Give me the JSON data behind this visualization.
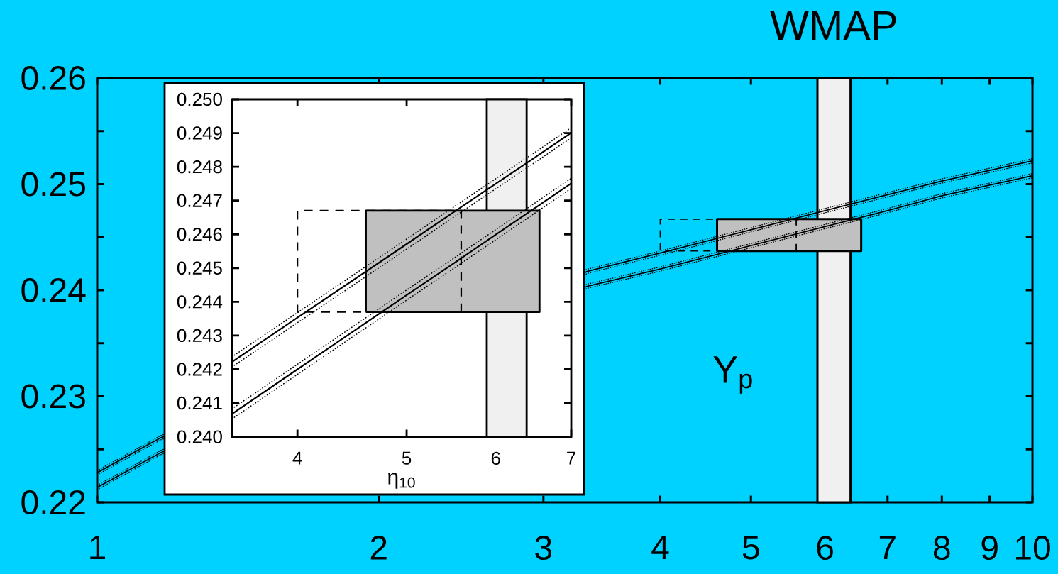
{
  "chart_data": [
    {
      "type": "line",
      "x": [
        1,
        1.17,
        3.35,
        4,
        5,
        6,
        7,
        8,
        9,
        10
      ],
      "series": [
        {
          "color": "#000000",
          "line_style": "dotted",
          "values": [
            0.223,
            0.2263,
            0.242,
            0.2437,
            0.2459,
            0.2477,
            0.2492,
            0.2505,
            0.2515,
            0.2524
          ]
        },
        {
          "color": "#000000",
          "line_style": "solid",
          "values": [
            0.2228,
            0.2261,
            0.2418,
            0.2435,
            0.2457,
            0.2475,
            0.249,
            0.2503,
            0.2513,
            0.2522
          ]
        },
        {
          "color": "#000000",
          "line_style": "dotted",
          "values": [
            0.2226,
            0.2259,
            0.2416,
            0.2433,
            0.2455,
            0.2473,
            0.2488,
            0.2501,
            0.2511,
            0.252
          ]
        },
        {
          "color": "#000000",
          "line_style": "dotted",
          "values": [
            0.2216,
            0.2249,
            0.2406,
            0.2422,
            0.2444,
            0.2462,
            0.2477,
            0.2491,
            0.2501,
            0.251
          ]
        },
        {
          "color": "#000000",
          "line_style": "solid",
          "values": [
            0.2214,
            0.2247,
            0.2404,
            0.242,
            0.2442,
            0.246,
            0.2475,
            0.2489,
            0.2499,
            0.2508
          ]
        },
        {
          "color": "#000000",
          "line_style": "dotted",
          "values": [
            0.2212,
            0.2245,
            0.2402,
            0.2418,
            0.244,
            0.2458,
            0.2473,
            0.2487,
            0.2497,
            0.2506
          ]
        },
        {
          "type": "area",
          "color": "#c0c0c0",
          "x": [
            4.6,
            4.6,
            6.56,
            6.56,
            4.6
          ],
          "values": [
            0.2437,
            0.2467,
            0.2467,
            0.2437,
            0.2437
          ]
        },
        {
          "type": "line",
          "color": "#000000",
          "line_style": "dashed",
          "x": [
            5.59,
            5.59,
            4,
            4,
            4.6
          ],
          "values": [
            0.2437,
            0.2467,
            0.2467,
            0.2437,
            0.2437
          ]
        }
      ],
      "xlim": [
        1,
        10
      ],
      "ylim": [
        0.22,
        0.26
      ],
      "log": "x",
      "xticks": [
        1,
        2,
        3,
        4,
        5,
        6,
        7,
        8,
        9,
        10
      ],
      "yticks": [
        0.22,
        {
          "value": 0.225,
          "label": null
        },
        0.23,
        {
          "value": 0.235,
          "label": null
        },
        0.24,
        {
          "value": 0.245,
          "label": null
        },
        0.25,
        {
          "value": 0.255,
          "label": null
        },
        0.26
      ],
      "bands": [
        {
          "axis": "x",
          "from": 5.89,
          "to": 6.39,
          "label": "WMAP",
          "color": "#f0f0f0"
        }
      ],
      "annotations": [
        "Y$_{p}$"
      ]
    },
    {
      "type": "line",
      "x": [
        3.5,
        4,
        4.5,
        5,
        5.5,
        6,
        6.5,
        7
      ],
      "series": [
        {
          "color": "#000000",
          "line_style": "dotted",
          "values": [
            0.24237,
            0.24368,
            0.24483,
            0.24586,
            0.2468,
            0.24765,
            0.24843,
            0.24916
          ]
        },
        {
          "color": "#000000",
          "line_style": "solid",
          "values": [
            0.24222,
            0.24353,
            0.24468,
            0.24571,
            0.24665,
            0.2475,
            0.24828,
            0.24901
          ]
        },
        {
          "color": "#000000",
          "line_style": "dotted",
          "values": [
            0.24207,
            0.24338,
            0.24453,
            0.24556,
            0.2465,
            0.24735,
            0.24813,
            0.24886
          ]
        },
        {
          "color": "#000000",
          "line_style": "dotted",
          "values": [
            0.24083,
            0.24215,
            0.24331,
            0.24435,
            0.24528,
            0.24614,
            0.24693,
            0.24766
          ]
        },
        {
          "color": "#000000",
          "line_style": "solid",
          "values": [
            0.24068,
            0.242,
            0.24316,
            0.2442,
            0.24513,
            0.24599,
            0.24678,
            0.24751
          ]
        },
        {
          "color": "#000000",
          "line_style": "dotted",
          "values": [
            0.24053,
            0.24185,
            0.24301,
            0.24405,
            0.24498,
            0.24584,
            0.24663,
            0.24736
          ]
        },
        {
          "type": "area",
          "color": "#c0c0c0",
          "x": [
            4.6,
            4.6,
            6.56,
            6.56,
            4.6
          ],
          "values": [
            0.2437,
            0.2467,
            0.2467,
            0.2437,
            0.2437
          ]
        },
        {
          "type": "line",
          "color": "#000000",
          "line_style": "dashed",
          "x": [
            5.59,
            5.59,
            4,
            4,
            4.6
          ],
          "values": [
            0.2437,
            0.2467,
            0.2467,
            0.2437,
            0.2437
          ]
        }
      ],
      "xlim": [
        3.5,
        7
      ],
      "ylim": [
        0.24,
        0.25
      ],
      "log": "x",
      "xticks": [
        4,
        5,
        6,
        7
      ],
      "yticks": [
        {
          "value": 0.24,
          "label": "0.240"
        },
        0.241,
        0.242,
        0.243,
        0.244,
        0.245,
        0.246,
        0.247,
        0.248,
        0.249,
        {
          "value": 0.25,
          "label": "0.250"
        }
      ],
      "xlabel": "η$_{10}$",
      "bands": [
        {
          "axis": "x",
          "from": 5.89,
          "to": 6.39,
          "color": "#f0f0f0"
        }
      ]
    }
  ]
}
